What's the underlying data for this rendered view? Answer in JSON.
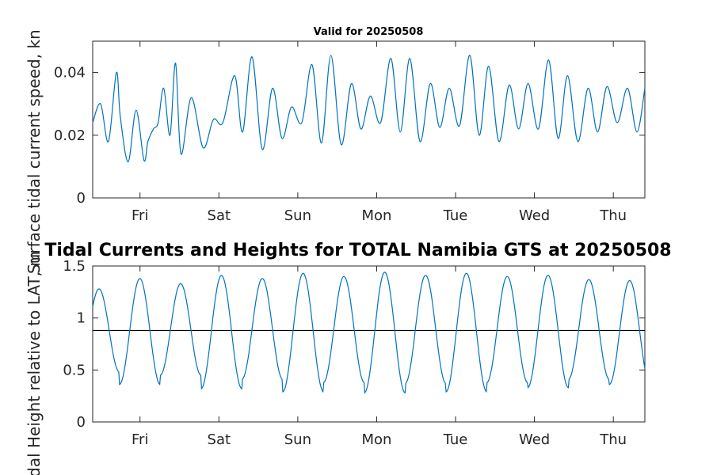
{
  "chart_data": [
    {
      "type": "line",
      "title": "Valid for 20250508",
      "ylabel": "Surface tidal current speed, kn",
      "xlabel": "",
      "days": [
        "Fri",
        "Sat",
        "Sun",
        "Mon",
        "Tue",
        "Wed",
        "Thu"
      ],
      "xlim": [
        -0.6,
        6.4
      ],
      "ylim": [
        0,
        0.05
      ],
      "yticks": [
        0,
        0.02,
        0.04
      ],
      "ytick_labels": [
        "0",
        "0.02",
        "0.04"
      ],
      "grid": false,
      "series": [
        {
          "color": "#0072BD",
          "x": [
            -0.6,
            -0.5,
            -0.4,
            -0.3,
            -0.25,
            -0.15,
            -0.05,
            0.05,
            0.1,
            0.17,
            0.23,
            0.3,
            0.38,
            0.45,
            0.52,
            0.65,
            0.8,
            0.93,
            1.05,
            1.2,
            1.3,
            1.42,
            1.55,
            1.68,
            1.8,
            1.92,
            2.05,
            2.18,
            2.3,
            2.42,
            2.55,
            2.68,
            2.8,
            2.92,
            3.05,
            3.18,
            3.3,
            3.42,
            3.55,
            3.68,
            3.8,
            3.92,
            4.05,
            4.18,
            4.3,
            4.42,
            4.55,
            4.68,
            4.8,
            4.92,
            5.05,
            5.18,
            5.3,
            5.42,
            5.55,
            5.68,
            5.8,
            5.92,
            6.05,
            6.18,
            6.3,
            6.4
          ],
          "y": [
            0.024,
            0.03,
            0.018,
            0.04,
            0.026,
            0.0115,
            0.028,
            0.012,
            0.018,
            0.022,
            0.024,
            0.035,
            0.02,
            0.043,
            0.014,
            0.032,
            0.016,
            0.025,
            0.024,
            0.039,
            0.021,
            0.045,
            0.0155,
            0.035,
            0.019,
            0.029,
            0.024,
            0.0425,
            0.0175,
            0.0455,
            0.017,
            0.0365,
            0.022,
            0.0325,
            0.024,
            0.0445,
            0.021,
            0.0445,
            0.018,
            0.0365,
            0.0225,
            0.035,
            0.023,
            0.0455,
            0.02,
            0.042,
            0.018,
            0.036,
            0.022,
            0.0365,
            0.022,
            0.044,
            0.019,
            0.039,
            0.018,
            0.035,
            0.021,
            0.0355,
            0.024,
            0.035,
            0.021,
            0.035
          ]
        }
      ]
    },
    {
      "type": "line",
      "title": "Tidal Currents and Heights for TOTAL Namibia GTS at 20250508",
      "ylabel": "Tidal Height relative to LAT, m",
      "xlabel": "",
      "days": [
        "Fri",
        "Sat",
        "Sun",
        "Mon",
        "Tue",
        "Wed",
        "Thu"
      ],
      "xlim": [
        -0.6,
        6.4
      ],
      "ylim": [
        0,
        1.5
      ],
      "yticks": [
        0,
        0.5,
        1,
        1.5
      ],
      "ytick_labels": [
        "0",
        "0.5",
        "1",
        "1.5"
      ],
      "grid": false,
      "reference_line": 0.88,
      "series": [
        {
          "color": "#0072BD",
          "mean": 0.88,
          "period_days": 0.5175,
          "first_peak_x": -0.52,
          "peaks": [
            1.28,
            1.38,
            1.33,
            1.41,
            1.38,
            1.43,
            1.4,
            1.44,
            1.41,
            1.43,
            1.4,
            1.41,
            1.37,
            1.36,
            1.3
          ],
          "troughs": [
            0.48,
            0.36,
            0.45,
            0.32,
            0.41,
            0.29,
            0.38,
            0.28,
            0.37,
            0.29,
            0.38,
            0.33,
            0.41,
            0.36,
            0.38
          ]
        }
      ]
    }
  ]
}
